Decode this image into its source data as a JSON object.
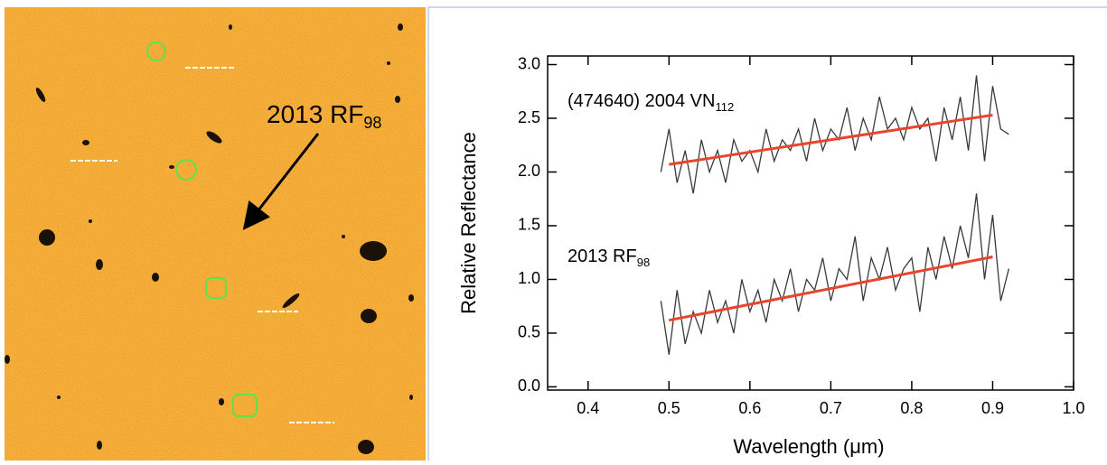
{
  "image_annotation": {
    "text": "2013 RF",
    "subscript": "98"
  },
  "chart_data": {
    "type": "line",
    "x_label": "Wavelength (μm)",
    "y_label": "Relative Reflectance",
    "annotations": [
      {
        "text": "(474640) 2004 VN",
        "subscript": "112"
      },
      {
        "text": "2013 RF",
        "subscript": "98"
      }
    ],
    "xlim": [
      0.35,
      1.0
    ],
    "ylim": [
      -0.03,
      3.08
    ],
    "xticks": [
      0.4,
      0.5,
      0.6,
      0.7,
      0.8,
      0.9,
      {
        "value": 1.0,
        "label": "1.0"
      }
    ],
    "yticks": [
      {
        "value": 0.0,
        "label": "0.0"
      },
      0.5,
      {
        "value": 1.0,
        "label": "1.0"
      },
      1.5,
      {
        "value": 2.0,
        "label": "2.0"
      },
      2.5,
      {
        "value": 3.0,
        "label": "3.0"
      }
    ],
    "series": [
      {
        "color": "#3a3a3a",
        "x": [
          0.49,
          0.5,
          0.51,
          0.52,
          0.53,
          0.54,
          0.55,
          0.56,
          0.57,
          0.58,
          0.59,
          0.6,
          0.61,
          0.62,
          0.63,
          0.64,
          0.65,
          0.66,
          0.67,
          0.68,
          0.69,
          0.7,
          0.71,
          0.72,
          0.73,
          0.74,
          0.75,
          0.76,
          0.77,
          0.78,
          0.79,
          0.8,
          0.81,
          0.82,
          0.83,
          0.84,
          0.85,
          0.86,
          0.87,
          0.88,
          0.89,
          0.9,
          0.91,
          0.92
        ],
        "values": [
          2.0,
          2.4,
          1.9,
          2.2,
          1.8,
          2.3,
          2.0,
          2.2,
          1.9,
          2.3,
          2.1,
          2.2,
          2.0,
          2.4,
          2.1,
          2.3,
          2.2,
          2.4,
          2.1,
          2.5,
          2.2,
          2.4,
          2.3,
          2.6,
          2.2,
          2.5,
          2.3,
          2.7,
          2.4,
          2.5,
          2.3,
          2.6,
          2.4,
          2.5,
          2.1,
          2.6,
          2.3,
          2.7,
          2.2,
          2.9,
          2.1,
          2.8,
          2.4,
          2.35
        ]
      },
      {
        "color": "#3a3a3a",
        "x": [
          0.49,
          0.5,
          0.51,
          0.52,
          0.53,
          0.54,
          0.55,
          0.56,
          0.57,
          0.58,
          0.59,
          0.6,
          0.61,
          0.62,
          0.63,
          0.64,
          0.65,
          0.66,
          0.67,
          0.68,
          0.69,
          0.7,
          0.71,
          0.72,
          0.73,
          0.74,
          0.75,
          0.76,
          0.77,
          0.78,
          0.79,
          0.8,
          0.81,
          0.82,
          0.83,
          0.84,
          0.85,
          0.86,
          0.87,
          0.88,
          0.89,
          0.9,
          0.91,
          0.92
        ],
        "values": [
          0.8,
          0.3,
          0.9,
          0.4,
          0.7,
          0.5,
          0.9,
          0.6,
          0.8,
          0.5,
          1.0,
          0.7,
          0.9,
          0.6,
          1.0,
          0.8,
          1.1,
          0.7,
          1.0,
          0.9,
          1.2,
          0.8,
          1.1,
          1.0,
          1.4,
          0.8,
          1.2,
          1.0,
          1.3,
          0.9,
          1.1,
          1.2,
          0.7,
          1.3,
          1.0,
          1.4,
          1.1,
          1.5,
          1.2,
          1.8,
          1.0,
          1.6,
          0.8,
          1.1
        ]
      },
      {
        "color": "#e8452c",
        "x": [
          0.5,
          0.9
        ],
        "values": [
          2.07,
          2.53
        ]
      },
      {
        "color": "#e8452c",
        "x": [
          0.5,
          0.9
        ],
        "values": [
          0.62,
          1.21
        ]
      }
    ]
  }
}
